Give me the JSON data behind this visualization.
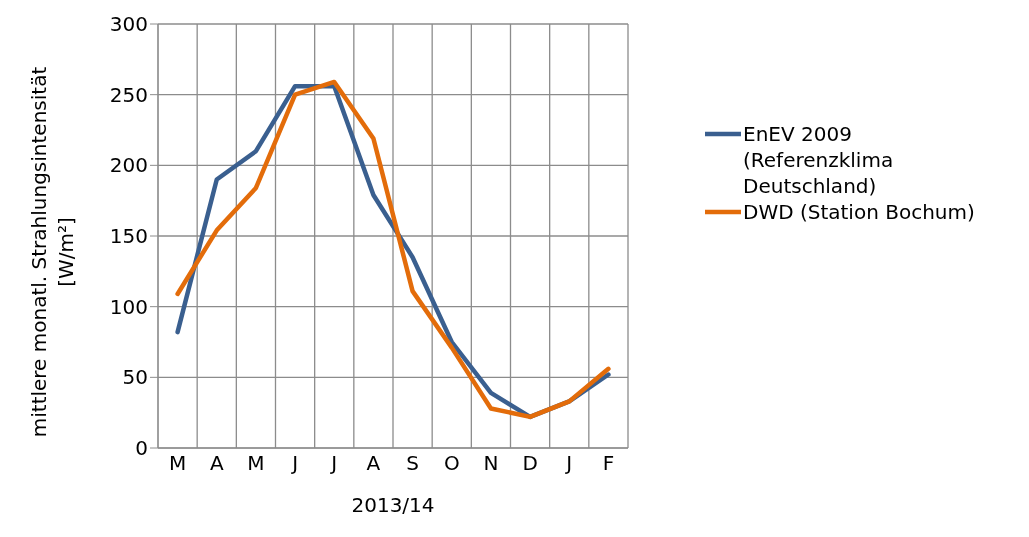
{
  "chart_data": {
    "type": "line",
    "xlabel": "2013/14",
    "ylabel": "mittlere monatl. Strahlungsintensität [W/m²]",
    "categories": [
      "M",
      "A",
      "M",
      "J",
      "J",
      "A",
      "S",
      "O",
      "N",
      "D",
      "J",
      "F"
    ],
    "series": [
      {
        "name": "EnEV 2009 (Referenzklima Deutschland)",
        "color": "#3a5f8f",
        "values": [
          82,
          190,
          210,
          256,
          256,
          179,
          135,
          75,
          39,
          22,
          33,
          52
        ]
      },
      {
        "name": "DWD (Station Bochum)",
        "color": "#e36c0a",
        "values": [
          109,
          154,
          184,
          250,
          259,
          219,
          111,
          71,
          28,
          22,
          33,
          56
        ]
      }
    ],
    "ylim": [
      0,
      300
    ],
    "yticks": [
      0,
      50,
      100,
      150,
      200,
      250,
      300
    ],
    "grid": true,
    "legend": "right",
    "marker": "none",
    "line_style": "solid"
  }
}
